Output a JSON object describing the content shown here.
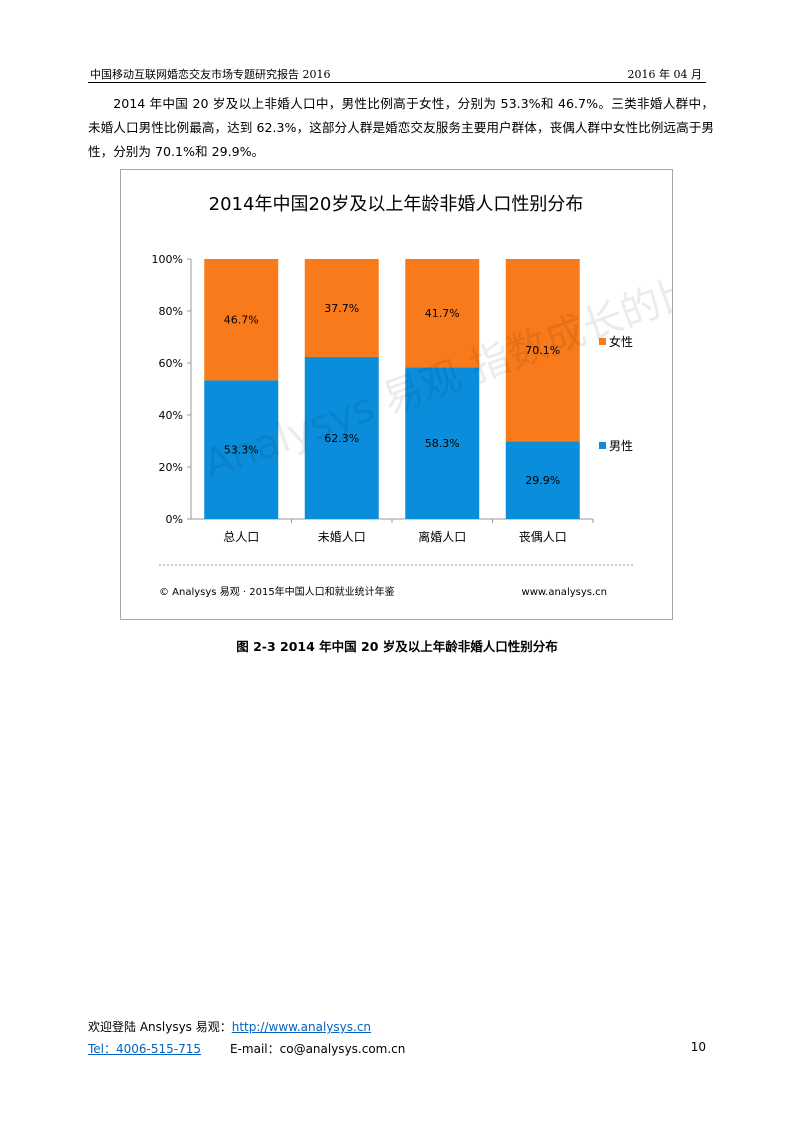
{
  "header": {
    "left": "中国移动互联网婚恋交友市场专题研究报告 2016",
    "right": "2016 年 04 月"
  },
  "paragraph": "2014 年中国 20 岁及以上非婚人口中，男性比例高于女性，分别为 53.3%和 46.7%。三类非婚人群中，未婚人口男性比例最高，达到 62.3%，这部分人群是婚恋交友服务主要用户群体，丧偶人群中女性比例远高于男性，分别为 70.1%和 29.9%。",
  "chart_data": {
    "type": "bar",
    "stacked": true,
    "title": "2014年中国20岁及以上年龄非婚人口性别分布",
    "categories": [
      "总人口",
      "未婚人口",
      "离婚人口",
      "丧偶人口"
    ],
    "series": [
      {
        "name": "男性",
        "values": [
          53.3,
          62.3,
          58.3,
          29.9
        ],
        "labels": [
          "53.3%",
          "62.3%",
          "58.3%",
          "29.9%"
        ],
        "color": "#0a8edb"
      },
      {
        "name": "女性",
        "values": [
          46.7,
          37.7,
          41.7,
          70.1
        ],
        "labels": [
          "46.7%",
          "37.7%",
          "41.7%",
          "70.1%"
        ],
        "color": "#f97a1b"
      }
    ],
    "ylim": [
      0,
      100
    ],
    "yticks": [
      "0%",
      "20%",
      "40%",
      "60%",
      "80%",
      "100%"
    ],
    "legend_position": "right",
    "source": "© Analysys 易观 · 2015年中国人口和就业统计年鉴",
    "website": "www.analysys.cn",
    "watermark": "Analysys 易观 指数成长的比特动能"
  },
  "caption": "图 2-3 2014 年中国 20 岁及以上年龄非婚人口性别分布",
  "footer": {
    "welcome": "欢迎登陆 Anslysys 易观：",
    "url": "http://www.analysys.cn",
    "tel": "Tel：4006-515-715",
    "email": "E-mail：co@analysys.com.cn",
    "page": "10"
  }
}
